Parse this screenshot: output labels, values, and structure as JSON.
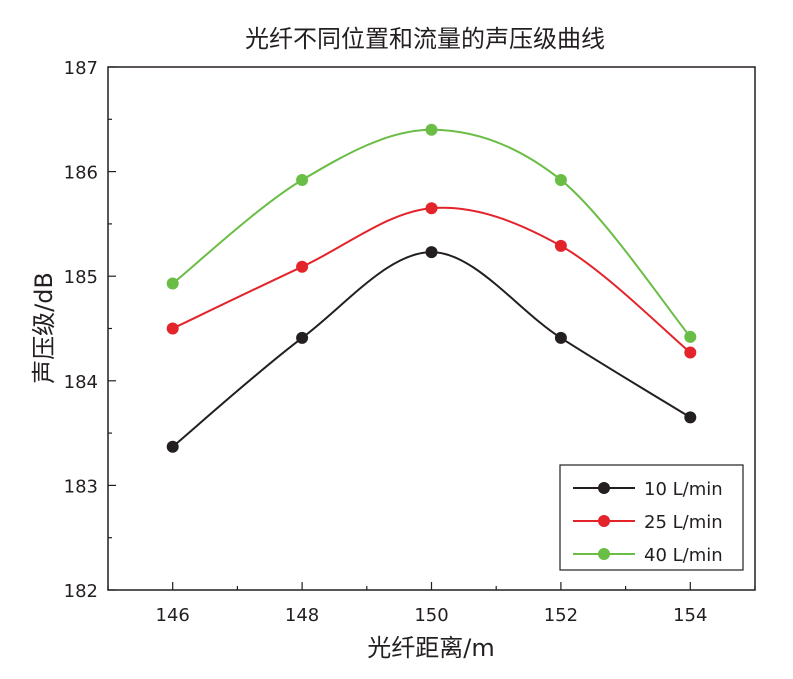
{
  "chart_data": {
    "type": "line",
    "title": "光纤不同位置和流量的声压级曲线",
    "xlabel": "光纤距离/m",
    "ylabel": "声压级/dB",
    "xlim": [
      145,
      155
    ],
    "ylim": [
      182,
      187
    ],
    "xticks": [
      146,
      148,
      150,
      152,
      154
    ],
    "yticks": [
      182,
      183,
      184,
      185,
      186,
      187
    ],
    "x": [
      146,
      148,
      150,
      152,
      154
    ],
    "legend_position": "bottom-right",
    "series": [
      {
        "name": "10 L/min",
        "color": "#231f20",
        "values": [
          183.37,
          184.41,
          185.23,
          184.41,
          183.65
        ]
      },
      {
        "name": "25 L/min",
        "color": "#e3242b",
        "values": [
          184.5,
          185.09,
          185.65,
          185.29,
          184.27
        ]
      },
      {
        "name": "40 L/min",
        "color": "#6abd45",
        "values": [
          184.93,
          185.92,
          186.4,
          185.92,
          184.42
        ]
      }
    ]
  }
}
